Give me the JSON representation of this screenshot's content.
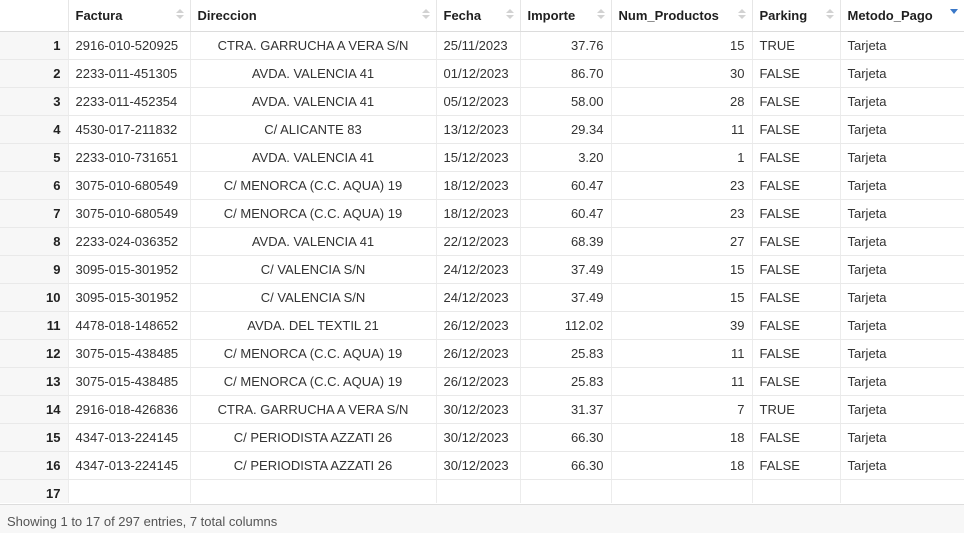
{
  "table": {
    "columns": [
      {
        "key": "idx",
        "label": ""
      },
      {
        "key": "factura",
        "label": "Factura"
      },
      {
        "key": "direccion",
        "label": "Direccion"
      },
      {
        "key": "fecha",
        "label": "Fecha"
      },
      {
        "key": "importe",
        "label": "Importe"
      },
      {
        "key": "num_productos",
        "label": "Num_Productos"
      },
      {
        "key": "parking",
        "label": "Parking"
      },
      {
        "key": "metodo_pago",
        "label": "Metodo_Pago"
      }
    ],
    "sorted_column": "metodo_pago",
    "sort_direction": "descending",
    "rows": [
      [
        "1",
        "2916-010-520925",
        "CTRA. GARRUCHA A VERA S/N",
        "25/11/2023",
        "37.76",
        "15",
        "TRUE",
        "Tarjeta"
      ],
      [
        "2",
        "2233-011-451305",
        "AVDA. VALENCIA 41",
        "01/12/2023",
        "86.70",
        "30",
        "FALSE",
        "Tarjeta"
      ],
      [
        "3",
        "2233-011-452354",
        "AVDA. VALENCIA 41",
        "05/12/2023",
        "58.00",
        "28",
        "FALSE",
        "Tarjeta"
      ],
      [
        "4",
        "4530-017-211832",
        "C/ ALICANTE 83",
        "13/12/2023",
        "29.34",
        "11",
        "FALSE",
        "Tarjeta"
      ],
      [
        "5",
        "2233-010-731651",
        "AVDA. VALENCIA 41",
        "15/12/2023",
        "3.20",
        "1",
        "FALSE",
        "Tarjeta"
      ],
      [
        "6",
        "3075-010-680549",
        "C/ MENORCA (C.C. AQUA) 19",
        "18/12/2023",
        "60.47",
        "23",
        "FALSE",
        "Tarjeta"
      ],
      [
        "7",
        "3075-010-680549",
        "C/ MENORCA (C.C. AQUA) 19",
        "18/12/2023",
        "60.47",
        "23",
        "FALSE",
        "Tarjeta"
      ],
      [
        "8",
        "2233-024-036352",
        "AVDA. VALENCIA 41",
        "22/12/2023",
        "68.39",
        "27",
        "FALSE",
        "Tarjeta"
      ],
      [
        "9",
        "3095-015-301952",
        "C/ VALENCIA S/N",
        "24/12/2023",
        "37.49",
        "15",
        "FALSE",
        "Tarjeta"
      ],
      [
        "10",
        "3095-015-301952",
        "C/ VALENCIA S/N",
        "24/12/2023",
        "37.49",
        "15",
        "FALSE",
        "Tarjeta"
      ],
      [
        "11",
        "4478-018-148652",
        "AVDA. DEL TEXTIL 21",
        "26/12/2023",
        "112.02",
        "39",
        "FALSE",
        "Tarjeta"
      ],
      [
        "12",
        "3075-015-438485",
        "C/ MENORCA (C.C. AQUA) 19",
        "26/12/2023",
        "25.83",
        "11",
        "FALSE",
        "Tarjeta"
      ],
      [
        "13",
        "3075-015-438485",
        "C/ MENORCA (C.C. AQUA) 19",
        "26/12/2023",
        "25.83",
        "11",
        "FALSE",
        "Tarjeta"
      ],
      [
        "14",
        "2916-018-426836",
        "CTRA. GARRUCHA A VERA S/N",
        "30/12/2023",
        "31.37",
        "7",
        "TRUE",
        "Tarjeta"
      ],
      [
        "15",
        "4347-013-224145",
        "C/ PERIODISTA AZZATI 26",
        "30/12/2023",
        "66.30",
        "18",
        "FALSE",
        "Tarjeta"
      ],
      [
        "16",
        "4347-013-224145",
        "C/ PERIODISTA AZZATI 26",
        "30/12/2023",
        "66.30",
        "18",
        "FALSE",
        "Tarjeta"
      ],
      [
        "17",
        "",
        "",
        "",
        "",
        "",
        "",
        ""
      ]
    ]
  },
  "footer": {
    "status": "Showing 1 to 17 of 297 entries, 7 total columns"
  },
  "colors": {
    "sort_active": "#3a78c8",
    "sort_inactive": "#d2d2d2",
    "footer_bg": "#f7f7f7"
  }
}
